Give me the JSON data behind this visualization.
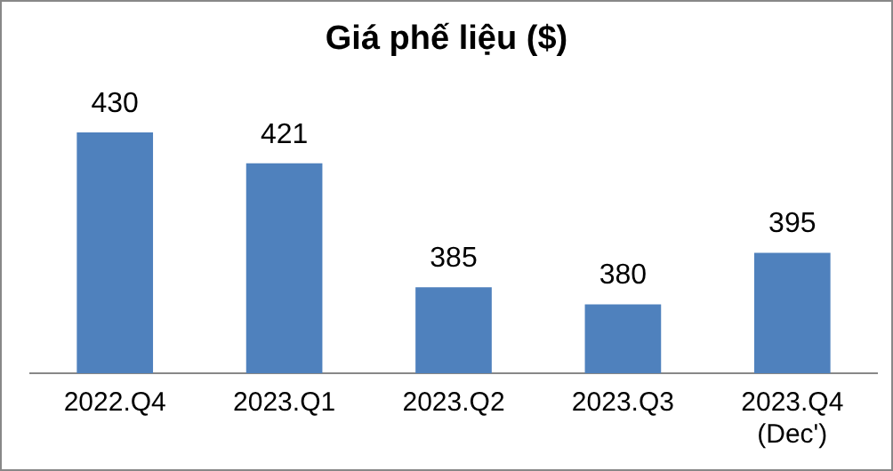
{
  "chart_data": {
    "type": "bar",
    "title": "Giá phế liệu ($)",
    "categories": [
      "2022.Q4",
      "2023.Q1",
      "2023.Q2",
      "2023.Q3",
      "2023.Q4\n(Dec')"
    ],
    "values": [
      430,
      421,
      385,
      380,
      395
    ],
    "color": "#4f81bd",
    "grid": false,
    "legend": false,
    "data_labels": true
  }
}
